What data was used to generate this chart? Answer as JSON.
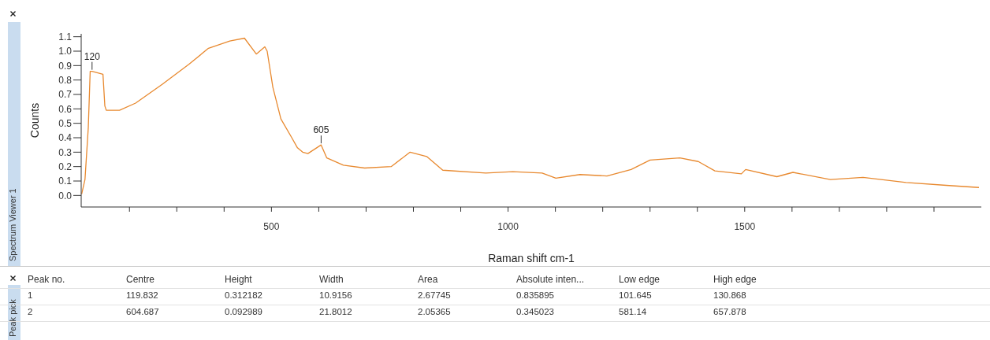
{
  "chart_data": {
    "type": "line",
    "xlabel": "Raman shift cm-1",
    "ylabel": "Counts",
    "xlim": [
      98,
      2000
    ],
    "ylim": [
      -0.08,
      1.12
    ],
    "xticks": [
      {
        "value": 200,
        "label": null
      },
      {
        "value": 300,
        "label": null
      },
      {
        "value": 400,
        "label": null
      },
      500,
      {
        "value": 600,
        "label": null
      },
      {
        "value": 700,
        "label": null
      },
      {
        "value": 800,
        "label": null
      },
      {
        "value": 900,
        "label": null
      },
      1000,
      {
        "value": 1100,
        "label": null
      },
      {
        "value": 1200,
        "label": null
      },
      {
        "value": 1300,
        "label": null
      },
      {
        "value": 1400,
        "label": null
      },
      1500,
      {
        "value": 1600,
        "label": null
      },
      {
        "value": 1700,
        "label": null
      },
      {
        "value": 1800,
        "label": null
      },
      {
        "value": 1900,
        "label": null
      }
    ],
    "yticks": [
      {
        "value": 0,
        "label": "0.0"
      },
      0.1,
      0.2,
      0.3,
      0.4,
      0.5,
      0.6,
      0.7,
      0.8,
      0.9,
      {
        "value": 1,
        "label": "1.0"
      },
      1.1
    ],
    "grid": false,
    "marker": "none",
    "line_style": "solid",
    "series": [
      {
        "color": "#e8892f",
        "x": [
          99,
          106,
          113,
          117,
          121,
          144,
          148,
          151,
          179,
          213,
          269,
          326,
          367,
          412,
          443,
          468,
          486,
          491,
          503,
          520,
          543,
          555,
          566,
          577,
          605,
          617,
          652,
          697,
          753,
          793,
          828,
          862,
          953,
          1010,
          1072,
          1101,
          1152,
          1209,
          1260,
          1300,
          1363,
          1402,
          1437,
          1493,
          1502,
          1568,
          1602,
          1681,
          1750,
          1841,
          1926,
          1995
        ],
        "values": [
          0.01,
          0.11,
          0.47,
          0.86,
          0.86,
          0.84,
          0.62,
          0.59,
          0.59,
          0.64,
          0.77,
          0.91,
          1.02,
          1.07,
          1.09,
          0.98,
          1.03,
          1.0,
          0.75,
          0.53,
          0.4,
          0.33,
          0.3,
          0.29,
          0.35,
          0.26,
          0.21,
          0.19,
          0.2,
          0.3,
          0.27,
          0.175,
          0.155,
          0.165,
          0.155,
          0.12,
          0.145,
          0.135,
          0.18,
          0.245,
          0.26,
          0.235,
          0.17,
          0.15,
          0.18,
          0.13,
          0.16,
          0.11,
          0.125,
          0.09,
          0.07,
          0.055
        ]
      }
    ],
    "annotations": [
      {
        "text": "120",
        "x": 121,
        "y": 0.86
      },
      {
        "text": "605",
        "x": 605,
        "y": 0.35
      },
      "Spectrum Viewer 1",
      "Peak pick",
      "Peak no.",
      "Centre",
      "Height",
      "Width",
      "Area",
      "Absolute inten...",
      "Low edge",
      "High edge",
      "1",
      "119.832",
      "0.312182",
      "10.9156",
      "2.67745",
      "0.835895",
      "101.645",
      "130.868",
      "2",
      "604.687",
      "0.092989",
      "21.8012",
      "2.05365",
      "0.345023",
      "581.14",
      "657.878"
    ]
  }
}
